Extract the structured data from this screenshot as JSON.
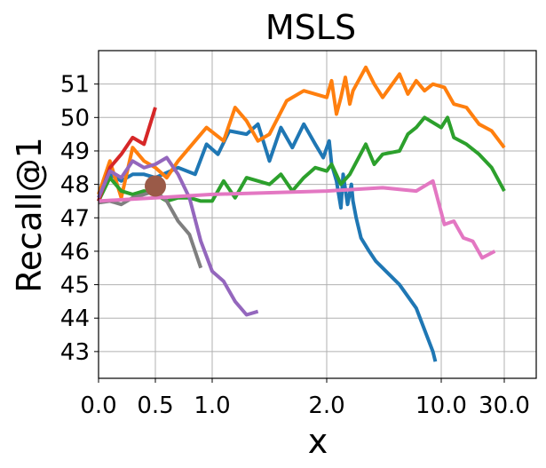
{
  "chart_data": {
    "type": "line",
    "title": "MSLS",
    "xlabel": "x",
    "ylabel": "Recall@1",
    "grid": true,
    "legend": "none",
    "x_axis_note": "piecewise-scaled axis; tick labels printed unevenly",
    "xticks": [
      {
        "value": 0.0,
        "label": "0.0"
      },
      {
        "value": 0.5,
        "label": "0.5"
      },
      {
        "value": 1.0,
        "label": "1.0"
      },
      {
        "value": 2.0,
        "label": "2.0"
      },
      {
        "value": 10.0,
        "label": "10.0"
      },
      {
        "value": 30.0,
        "label": "30.0"
      }
    ],
    "xlim": [
      0.0,
      30.0
    ],
    "ylim": [
      42.2,
      52.0
    ],
    "yticks": [
      43,
      44,
      45,
      46,
      47,
      48,
      49,
      50,
      51
    ],
    "marker": {
      "x": 0.5,
      "y": 47.95,
      "color": "#9a5a48"
    },
    "series": [
      {
        "color": "#1f77b4",
        "points": [
          [
            0.0,
            47.5
          ],
          [
            0.1,
            48.3
          ],
          [
            0.2,
            48.1
          ],
          [
            0.3,
            48.3
          ],
          [
            0.4,
            48.3
          ],
          [
            0.5,
            48.2
          ],
          [
            0.7,
            48.5
          ],
          [
            0.85,
            48.3
          ],
          [
            0.95,
            49.2
          ],
          [
            1.05,
            48.9
          ],
          [
            1.15,
            49.6
          ],
          [
            1.3,
            49.5
          ],
          [
            1.4,
            49.8
          ],
          [
            1.5,
            48.7
          ],
          [
            1.6,
            49.7
          ],
          [
            1.7,
            49.1
          ],
          [
            1.8,
            49.8
          ],
          [
            1.9,
            49.2
          ],
          [
            1.97,
            48.8
          ],
          [
            2.05,
            49.3
          ],
          [
            2.1,
            48.6
          ],
          [
            2.2,
            48.1
          ],
          [
            2.3,
            47.3
          ],
          [
            2.35,
            48.3
          ],
          [
            2.45,
            47.4
          ],
          [
            2.55,
            48.0
          ],
          [
            2.6,
            47.5
          ],
          [
            2.7,
            47.0
          ],
          [
            2.85,
            46.4
          ],
          [
            3.2,
            46.0
          ],
          [
            3.6,
            45.7
          ],
          [
            5.0,
            45.0
          ],
          [
            7.0,
            44.3
          ],
          [
            9.0,
            43.0
          ],
          [
            9.3,
            42.7
          ]
        ]
      },
      {
        "color": "#ff7f0e",
        "points": [
          [
            0.0,
            47.7
          ],
          [
            0.1,
            48.7
          ],
          [
            0.2,
            47.6
          ],
          [
            0.3,
            49.1
          ],
          [
            0.4,
            48.7
          ],
          [
            0.5,
            48.5
          ],
          [
            0.6,
            48.2
          ],
          [
            0.7,
            48.7
          ],
          [
            0.8,
            49.1
          ],
          [
            0.95,
            49.7
          ],
          [
            1.1,
            49.3
          ],
          [
            1.2,
            50.3
          ],
          [
            1.3,
            49.9
          ],
          [
            1.4,
            49.3
          ],
          [
            1.5,
            49.5
          ],
          [
            1.65,
            50.5
          ],
          [
            1.8,
            50.8
          ],
          [
            2.0,
            50.6
          ],
          [
            2.1,
            51.1
          ],
          [
            2.2,
            50.1
          ],
          [
            2.3,
            50.6
          ],
          [
            2.4,
            51.2
          ],
          [
            2.5,
            50.4
          ],
          [
            2.6,
            50.8
          ],
          [
            3.0,
            51.5
          ],
          [
            3.5,
            51.0
          ],
          [
            4.0,
            50.6
          ],
          [
            5.0,
            51.3
          ],
          [
            6.0,
            50.7
          ],
          [
            7.0,
            51.1
          ],
          [
            8.0,
            50.8
          ],
          [
            9.0,
            51.0
          ],
          [
            11.0,
            50.9
          ],
          [
            14.0,
            50.4
          ],
          [
            18.0,
            50.3
          ],
          [
            22.0,
            49.8
          ],
          [
            26.0,
            49.6
          ],
          [
            30.0,
            49.1
          ]
        ]
      },
      {
        "color": "#2ca02c",
        "points": [
          [
            0.0,
            47.5
          ],
          [
            0.1,
            48.2
          ],
          [
            0.2,
            47.8
          ],
          [
            0.3,
            47.7
          ],
          [
            0.4,
            47.8
          ],
          [
            0.5,
            47.7
          ],
          [
            0.6,
            47.5
          ],
          [
            0.7,
            47.6
          ],
          [
            0.8,
            47.6
          ],
          [
            0.9,
            47.5
          ],
          [
            1.0,
            47.5
          ],
          [
            1.1,
            48.1
          ],
          [
            1.2,
            47.6
          ],
          [
            1.3,
            48.2
          ],
          [
            1.5,
            48.0
          ],
          [
            1.6,
            48.3
          ],
          [
            1.7,
            47.8
          ],
          [
            1.8,
            48.2
          ],
          [
            1.9,
            48.5
          ],
          [
            2.0,
            48.4
          ],
          [
            2.1,
            48.6
          ],
          [
            2.3,
            48.0
          ],
          [
            2.5,
            48.3
          ],
          [
            3.0,
            49.2
          ],
          [
            3.5,
            48.6
          ],
          [
            4.0,
            48.9
          ],
          [
            5.0,
            49.0
          ],
          [
            6.0,
            49.5
          ],
          [
            7.0,
            49.7
          ],
          [
            8.0,
            50.0
          ],
          [
            10.0,
            49.7
          ],
          [
            12.0,
            50.0
          ],
          [
            14.0,
            49.4
          ],
          [
            18.0,
            49.2
          ],
          [
            22.0,
            48.9
          ],
          [
            26.0,
            48.5
          ],
          [
            30.0,
            47.8
          ]
        ]
      },
      {
        "color": "#d62728",
        "points": [
          [
            0.0,
            47.5
          ],
          [
            0.1,
            48.5
          ],
          [
            0.2,
            48.9
          ],
          [
            0.3,
            49.4
          ],
          [
            0.4,
            49.2
          ],
          [
            0.5,
            50.3
          ]
        ]
      },
      {
        "color": "#9467bd",
        "points": [
          [
            0.0,
            47.6
          ],
          [
            0.1,
            48.4
          ],
          [
            0.2,
            48.2
          ],
          [
            0.3,
            48.7
          ],
          [
            0.4,
            48.5
          ],
          [
            0.5,
            48.6
          ],
          [
            0.6,
            48.8
          ],
          [
            0.7,
            48.3
          ],
          [
            0.8,
            47.6
          ],
          [
            0.9,
            46.3
          ],
          [
            1.0,
            45.4
          ],
          [
            1.1,
            45.1
          ],
          [
            1.2,
            44.5
          ],
          [
            1.3,
            44.1
          ],
          [
            1.4,
            44.2
          ]
        ]
      },
      {
        "color": "#7f7f7f",
        "points": [
          [
            0.0,
            47.45
          ],
          [
            0.1,
            47.5
          ],
          [
            0.2,
            47.4
          ],
          [
            0.3,
            47.6
          ],
          [
            0.4,
            47.7
          ],
          [
            0.5,
            47.8
          ],
          [
            0.6,
            47.5
          ],
          [
            0.7,
            46.9
          ],
          [
            0.8,
            46.5
          ],
          [
            0.9,
            45.5
          ]
        ]
      },
      {
        "color": "#e377c2",
        "points": [
          [
            0.0,
            47.5
          ],
          [
            0.5,
            47.6
          ],
          [
            1.0,
            47.7
          ],
          [
            2.0,
            47.8
          ],
          [
            4.0,
            47.9
          ],
          [
            7.0,
            47.8
          ],
          [
            9.0,
            48.1
          ],
          [
            11.0,
            46.8
          ],
          [
            14.0,
            46.9
          ],
          [
            17.0,
            46.4
          ],
          [
            20.0,
            46.3
          ],
          [
            23.0,
            45.8
          ],
          [
            27.0,
            46.0
          ]
        ]
      }
    ]
  }
}
